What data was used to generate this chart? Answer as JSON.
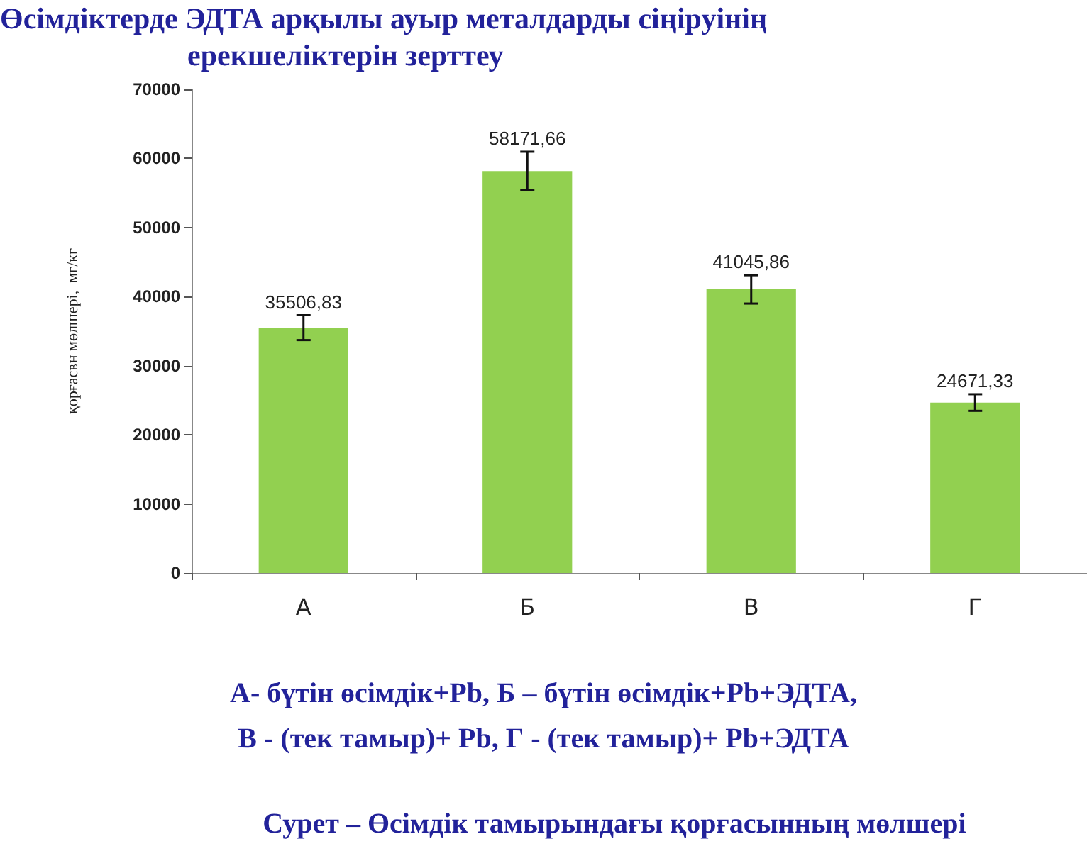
{
  "chart_data": {
    "type": "bar",
    "title": "Өсімдіктерде ЭДТА арқылы ауыр металдарды сіңіруінің ерекшеліктерін зерттеу",
    "ylabel": "қорғасвн мөлшері,  мг/кг",
    "categories": [
      "А",
      "Б",
      "В",
      "Г"
    ],
    "values": [
      35506.83,
      58171.66,
      41045.86,
      24671.33
    ],
    "value_labels": [
      "35506,83",
      "58171,66",
      "41045,86",
      "24671,33"
    ],
    "errors": [
      1800,
      2800,
      2050,
      1200
    ],
    "color": "#92d050",
    "ylim": [
      0,
      70000
    ],
    "yticks": [
      0,
      10000,
      20000,
      30000,
      40000,
      50000,
      60000,
      70000
    ],
    "grid": false,
    "annotations": [
      "А- бүтін өсімдік+Pb,  Б – бүтін өсімдік+Pb+ЭДТА,",
      "В - (тек тамыр)+ Pb, Г - (тек тамыр)+ Pb+ЭДТА",
      "Сурет  –  Өсімдік тамырындағы қорғасынның мөлшері"
    ]
  }
}
